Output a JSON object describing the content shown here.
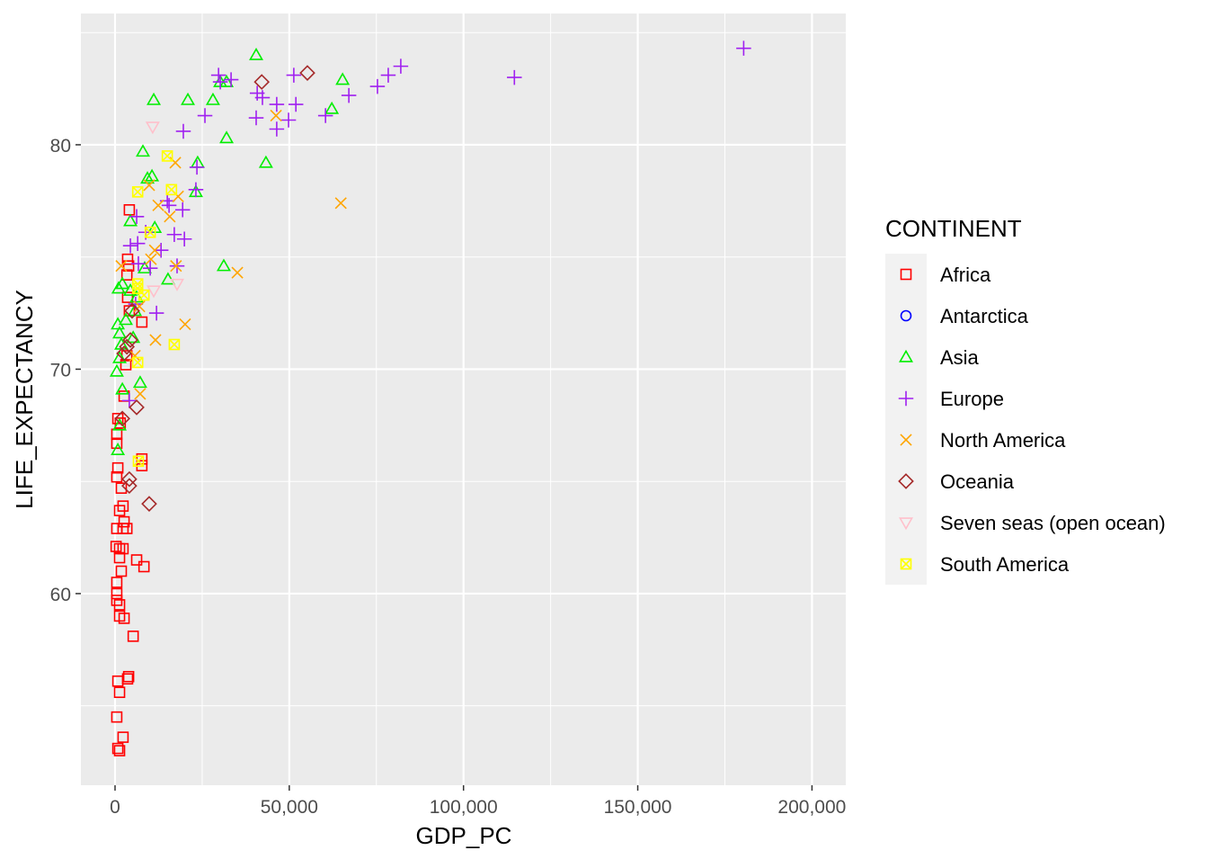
{
  "chart_data": {
    "type": "scatter",
    "xlabel": "GDP_PC",
    "ylabel": "LIFE_EXPECTANCY",
    "xlim": [
      -9800,
      209700
    ],
    "ylim": [
      51.46,
      85.85
    ],
    "x_ticks": [
      0,
      50000,
      100000,
      150000,
      200000
    ],
    "x_tick_labels": [
      "0",
      "50,000",
      "100,000",
      "150,000",
      "200,000"
    ],
    "y_ticks": [
      60,
      70,
      80
    ],
    "y_tick_labels": [
      "60",
      "70",
      "80"
    ],
    "grid": true,
    "legend_title": "CONTINENT",
    "legend_position": "right",
    "series": [
      {
        "name": "Africa",
        "shape": "square",
        "color": "#FF0000",
        "points": [
          [
            4100,
            77.1
          ],
          [
            3600,
            74.9
          ],
          [
            3900,
            74.6
          ],
          [
            3400,
            74.2
          ],
          [
            3600,
            73.2
          ],
          [
            4100,
            72.6
          ],
          [
            7700,
            72.1
          ],
          [
            3400,
            70.6
          ],
          [
            3100,
            70.2
          ],
          [
            2600,
            68.8
          ],
          [
            800,
            67.8
          ],
          [
            1500,
            67.6
          ],
          [
            500,
            67.1
          ],
          [
            500,
            66.7
          ],
          [
            800,
            65.6
          ],
          [
            500,
            65.2
          ],
          [
            1800,
            64.7
          ],
          [
            2300,
            63.9
          ],
          [
            1300,
            63.7
          ],
          [
            2600,
            63.2
          ],
          [
            2300,
            62.9
          ],
          [
            500,
            62.9
          ],
          [
            3400,
            62.9
          ],
          [
            300,
            62.1
          ],
          [
            1300,
            62.0
          ],
          [
            2300,
            62.0
          ],
          [
            1300,
            61.6
          ],
          [
            1800,
            61.0
          ],
          [
            6200,
            61.5
          ],
          [
            8300,
            61.2
          ],
          [
            500,
            60.5
          ],
          [
            500,
            60.0
          ],
          [
            500,
            59.7
          ],
          [
            1300,
            59.5
          ],
          [
            2600,
            58.9
          ],
          [
            1300,
            59.0
          ],
          [
            5200,
            58.1
          ],
          [
            3900,
            56.3
          ],
          [
            800,
            56.1
          ],
          [
            3600,
            56.2
          ],
          [
            1300,
            55.6
          ],
          [
            500,
            54.5
          ],
          [
            2300,
            53.6
          ],
          [
            800,
            53.1
          ],
          [
            1300,
            53.0
          ],
          [
            7700,
            66.0
          ],
          [
            7700,
            65.7
          ]
        ]
      },
      {
        "name": "Antarctica",
        "shape": "circle",
        "color": "#0000FF",
        "points": []
      },
      {
        "name": "Asia",
        "shape": "triangle",
        "color": "#00EE00",
        "points": [
          [
            40500,
            84.0
          ],
          [
            65300,
            82.9
          ],
          [
            32000,
            82.8
          ],
          [
            30200,
            82.8
          ],
          [
            28100,
            82.0
          ],
          [
            20900,
            82.0
          ],
          [
            11100,
            82.0
          ],
          [
            32000,
            80.3
          ],
          [
            62200,
            81.6
          ],
          [
            43300,
            79.2
          ],
          [
            8000,
            79.7
          ],
          [
            10600,
            78.6
          ],
          [
            9300,
            78.5
          ],
          [
            23700,
            79.2
          ],
          [
            23200,
            77.9
          ],
          [
            31200,
            74.6
          ],
          [
            15200,
            74.0
          ],
          [
            4400,
            76.6
          ],
          [
            11400,
            76.3
          ],
          [
            8500,
            74.5
          ],
          [
            2100,
            73.8
          ],
          [
            1000,
            73.6
          ],
          [
            800,
            72.0
          ],
          [
            1300,
            71.6
          ],
          [
            1800,
            71.1
          ],
          [
            1300,
            70.5
          ],
          [
            500,
            69.9
          ],
          [
            2100,
            69.1
          ],
          [
            7200,
            69.4
          ],
          [
            1300,
            67.5
          ],
          [
            800,
            66.4
          ],
          [
            5200,
            71.4
          ],
          [
            4400,
            73.5
          ],
          [
            6200,
            73.2
          ],
          [
            3100,
            72.2
          ],
          [
            5700,
            72.6
          ]
        ]
      },
      {
        "name": "Europe",
        "shape": "plus",
        "color": "#A020F0",
        "points": [
          [
            180400,
            84.3
          ],
          [
            114600,
            83.0
          ],
          [
            82000,
            83.5
          ],
          [
            78400,
            83.1
          ],
          [
            75300,
            82.6
          ],
          [
            67100,
            82.2
          ],
          [
            60400,
            81.3
          ],
          [
            51900,
            81.8
          ],
          [
            51300,
            83.1
          ],
          [
            49800,
            81.1
          ],
          [
            46400,
            80.7
          ],
          [
            46400,
            81.8
          ],
          [
            42300,
            82.1
          ],
          [
            40500,
            81.2
          ],
          [
            40800,
            82.3
          ],
          [
            33300,
            82.9
          ],
          [
            29700,
            83.1
          ],
          [
            30200,
            82.8
          ],
          [
            25800,
            81.3
          ],
          [
            19600,
            80.6
          ],
          [
            23500,
            79.0
          ],
          [
            15000,
            77.5
          ],
          [
            15500,
            77.3
          ],
          [
            19400,
            77.1
          ],
          [
            17000,
            76.0
          ],
          [
            19900,
            75.8
          ],
          [
            13200,
            75.3
          ],
          [
            8800,
            76.1
          ],
          [
            6500,
            75.6
          ],
          [
            4400,
            75.5
          ],
          [
            6700,
            74.7
          ],
          [
            10100,
            74.5
          ],
          [
            11900,
            72.5
          ],
          [
            17800,
            74.6
          ],
          [
            5900,
            72.9
          ],
          [
            6200,
            76.8
          ],
          [
            4100,
            68.6
          ],
          [
            23200,
            78.0
          ]
        ]
      },
      {
        "name": "North America",
        "shape": "cross",
        "color": "#FFA500",
        "points": [
          [
            64800,
            77.4
          ],
          [
            35100,
            74.3
          ],
          [
            46200,
            81.3
          ],
          [
            17300,
            79.2
          ],
          [
            18100,
            77.7
          ],
          [
            15700,
            76.8
          ],
          [
            12400,
            77.3
          ],
          [
            9800,
            78.2
          ],
          [
            11400,
            75.3
          ],
          [
            10300,
            74.9
          ],
          [
            17500,
            74.6
          ],
          [
            20100,
            72.0
          ],
          [
            11600,
            71.3
          ],
          [
            7200,
            68.9
          ],
          [
            5700,
            70.6
          ],
          [
            7000,
            72.8
          ],
          [
            1800,
            74.6
          ]
        ]
      },
      {
        "name": "Oceania",
        "shape": "diamond",
        "color": "#A52A2A",
        "points": [
          [
            55200,
            83.2
          ],
          [
            42100,
            82.8
          ],
          [
            4900,
            72.6
          ],
          [
            6200,
            68.3
          ],
          [
            9800,
            64.0
          ],
          [
            4100,
            65.1
          ],
          [
            4100,
            64.8
          ],
          [
            4400,
            71.3
          ],
          [
            3400,
            71.0
          ],
          [
            2600,
            70.7
          ],
          [
            2100,
            67.8
          ]
        ]
      },
      {
        "name": "Seven seas (open ocean)",
        "shape": "triangle-down",
        "color": "#FFC0CB",
        "points": [
          [
            10800,
            80.8
          ],
          [
            17800,
            73.8
          ],
          [
            11100,
            73.5
          ]
        ]
      },
      {
        "name": "South America",
        "shape": "square-cross",
        "color": "#FFFF00",
        "points": [
          [
            15000,
            79.5
          ],
          [
            6500,
            77.9
          ],
          [
            16200,
            78.0
          ],
          [
            10100,
            76.1
          ],
          [
            6500,
            73.6
          ],
          [
            8300,
            73.3
          ],
          [
            17000,
            71.1
          ],
          [
            6500,
            70.3
          ],
          [
            6700,
            65.9
          ],
          [
            6500,
            73.8
          ]
        ]
      }
    ]
  }
}
